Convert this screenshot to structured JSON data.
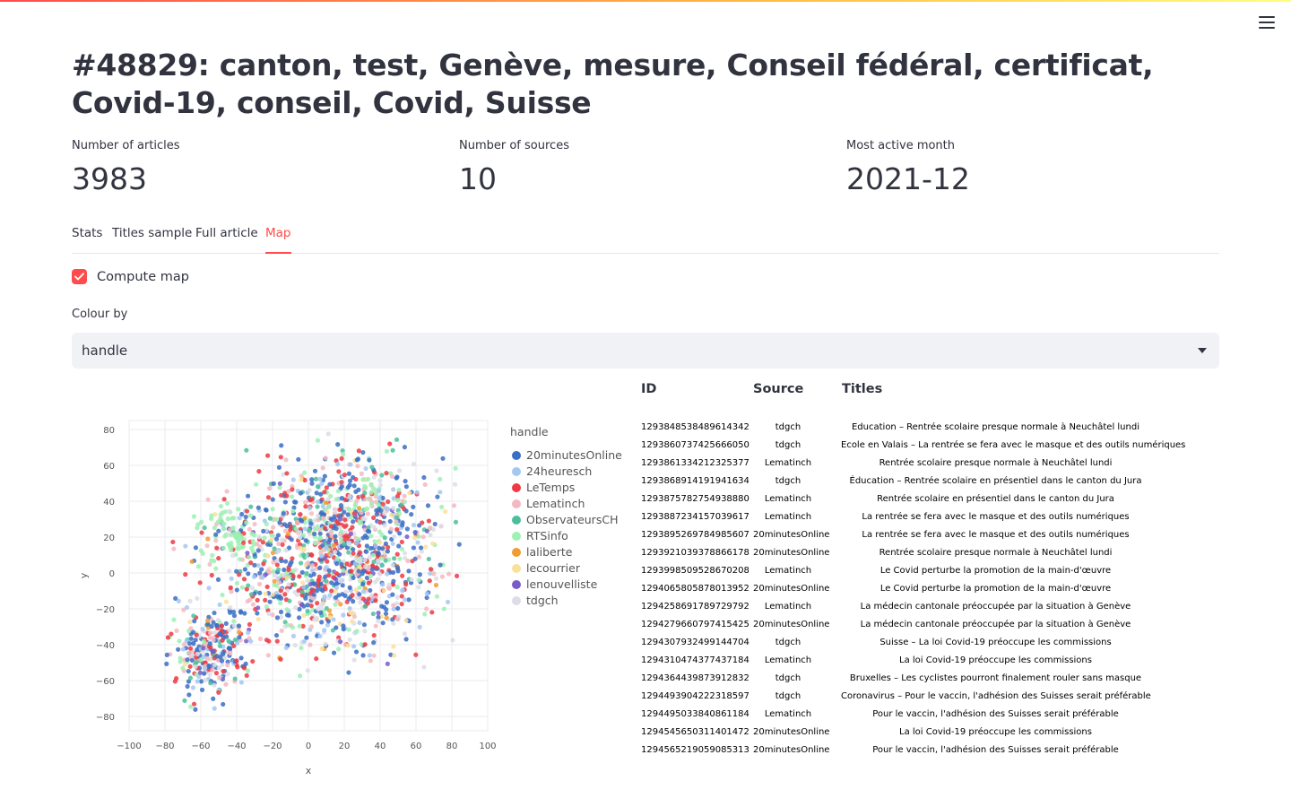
{
  "page": {
    "title": "#48829: canton, test, Genève, mesure, Conseil fédéral, certificat, Covid-19, conseil, Covid, Suisse",
    "menu_icon": "hamburger-icon"
  },
  "metrics": [
    {
      "label": "Number of articles",
      "value": "3983"
    },
    {
      "label": "Number of sources",
      "value": "10"
    },
    {
      "label": "Most active month",
      "value": "2021-12"
    }
  ],
  "tabs": [
    {
      "label": "Stats"
    },
    {
      "label": "Titles sample"
    },
    {
      "label": "Full article"
    },
    {
      "label": "Map"
    }
  ],
  "active_tab": "Map",
  "checkbox": {
    "label": "Compute map",
    "checked": true
  },
  "colour_by": {
    "label": "Colour by",
    "value": "handle"
  },
  "chart_data": {
    "type": "scatter",
    "xlabel": "x",
    "ylabel": "y",
    "xlim": [
      -100,
      100
    ],
    "ylim": [
      -80,
      80
    ],
    "xticks": [
      "−100",
      "−80",
      "−60",
      "−40",
      "−20",
      "0",
      "20",
      "40",
      "60",
      "80",
      "100"
    ],
    "yticks": [
      "80",
      "60",
      "40",
      "20",
      "0",
      "−20",
      "−40",
      "−60",
      "−80"
    ],
    "grid": true,
    "legend_title": "handle",
    "legend_position": "right",
    "series": [
      {
        "name": "20minutesOnline",
        "color": "#3b6fc4"
      },
      {
        "name": "24heuresch",
        "color": "#a5c8f2"
      },
      {
        "name": "LeTemps",
        "color": "#ee3a43"
      },
      {
        "name": "Lematinch",
        "color": "#f4b9c0"
      },
      {
        "name": "ObservateursCH",
        "color": "#4bbf9c"
      },
      {
        "name": "RTSinfo",
        "color": "#9ef0b3"
      },
      {
        "name": "laliberte",
        "color": "#f29b2f"
      },
      {
        "name": "lecourrier",
        "color": "#fae19a"
      },
      {
        "name": "lenouvelliste",
        "color": "#7a5cc9"
      },
      {
        "name": "tdgch",
        "color": "#dcdde8"
      }
    ]
  },
  "table": {
    "headers": {
      "id": "ID",
      "source": "Source",
      "titles": "Titles"
    },
    "rows": [
      {
        "id": "1293848538489614342",
        "source": "tdgch",
        "title": "Education – Rentrée scolaire presque normale à Neuchâtel lundi"
      },
      {
        "id": "1293860737425666050",
        "source": "tdgch",
        "title": "Ecole en Valais – La rentrée se fera avec le masque et des outils numériques"
      },
      {
        "id": "1293861334212325377",
        "source": "Lematinch",
        "title": "Rentrée scolaire presque normale à Neuchâtel lundi"
      },
      {
        "id": "1293868914191941634",
        "source": "tdgch",
        "title": "Éducation – Rentrée scolaire en présentiel dans le canton du Jura"
      },
      {
        "id": "1293875782754938880",
        "source": "Lematinch",
        "title": "Rentrée scolaire en présentiel dans le canton du Jura"
      },
      {
        "id": "1293887234157039617",
        "source": "Lematinch",
        "title": "La rentrée se fera avec le masque et des outils numériques"
      },
      {
        "id": "1293895269784985607",
        "source": "20minutesOnline",
        "title": "La rentrée se fera avec le masque et des outils numériques"
      },
      {
        "id": "1293921039378866178",
        "source": "20minutesOnline",
        "title": "Rentrée scolaire presque normale à Neuchâtel lundi"
      },
      {
        "id": "1293998509528670208",
        "source": "Lematinch",
        "title": "Le Covid perturbe la promotion de la main-d'œuvre"
      },
      {
        "id": "1294065805878013952",
        "source": "20minutesOnline",
        "title": "Le Covid perturbe la promotion de la main-d'œuvre"
      },
      {
        "id": "1294258691789729792",
        "source": "Lematinch",
        "title": "La médecin cantonale préoccupée par la situation à Genève"
      },
      {
        "id": "1294279660797415425",
        "source": "20minutesOnline",
        "title": "La médecin cantonale préoccupée par la situation à Genève"
      },
      {
        "id": "1294307932499144704",
        "source": "tdgch",
        "title": "Suisse – La loi Covid-19 préoccupe les commissions"
      },
      {
        "id": "1294310474377437184",
        "source": "Lematinch",
        "title": "La loi Covid-19 préoccupe les commissions"
      },
      {
        "id": "1294364439873912832",
        "source": "tdgch",
        "title": "Bruxelles – Les cyclistes pourront finalement rouler sans masque"
      },
      {
        "id": "1294493904222318597",
        "source": "tdgch",
        "title": "Coronavirus – Pour le vaccin, l'adhésion des Suisses serait préférable"
      },
      {
        "id": "1294495033840861184",
        "source": "Lematinch",
        "title": "Pour le vaccin, l'adhésion des Suisses serait préférable"
      },
      {
        "id": "1294545650311401472",
        "source": "20minutesOnline",
        "title": "La loi Covid-19 préoccupe les commissions"
      },
      {
        "id": "1294565219059085313",
        "source": "20minutesOnline",
        "title": "Pour le vaccin, l'adhésion des Suisses serait préférable"
      }
    ]
  }
}
